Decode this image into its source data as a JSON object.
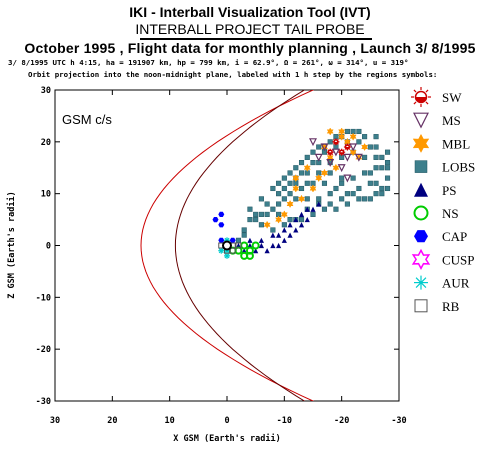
{
  "header": {
    "title": "IKI - Interball Visualization Tool (IVT)",
    "project": "INTERBALL PROJECT TAIL PROBE",
    "subtitle": "October  1995 ,  Flight data for monthly planning ,   Launch  3/ 8/1995",
    "orbit_params": "3/ 8/1995 UTC  h 4:15, ha = 191907 km, hp =    799 km, i = 62.9°, Ω = 261°, ω = 314°, u = 319°",
    "projection_note": "Orbit projection into the noon-midnight plane, labeled with 1 h step by the regions symbols:"
  },
  "chart_data": {
    "type": "scatter",
    "title": "",
    "frame_label": "GSM c/s",
    "xlabel": "X GSM (Earth's radii)",
    "ylabel": "Z GSM (Earth's radii)",
    "xlim": [
      30,
      -30
    ],
    "ylim": [
      -30,
      30
    ],
    "x_ticks": [
      30,
      20,
      10,
      0,
      -10,
      -20,
      -30
    ],
    "x_tick_labels": [
      "30",
      "20",
      "10",
      "0",
      "-10",
      "-20",
      "-30"
    ],
    "y_ticks": [
      30,
      20,
      10,
      0,
      -10,
      -20,
      -30
    ],
    "y_tick_labels": [
      "30",
      "20",
      "10",
      "0",
      "-10",
      "-20",
      "-30"
    ],
    "grid": false,
    "legend_position": "right",
    "boundaries": [
      {
        "name": "magnetopause",
        "color": "#cc0000",
        "nose_x": 15
      },
      {
        "name": "bow-shock",
        "color": "#660000",
        "nose_x": 9
      }
    ],
    "series": [
      {
        "name": "SW",
        "color": "#cc0000",
        "symbol": "sun",
        "points": [
          [
            -19,
            20
          ],
          [
            -20,
            18
          ],
          [
            -18,
            18
          ],
          [
            -21,
            19
          ]
        ]
      },
      {
        "name": "MS",
        "color": "#663366",
        "symbol": "triangle-down",
        "points": [
          [
            -15,
            20
          ],
          [
            -17,
            19
          ],
          [
            -19,
            18
          ],
          [
            -21,
            17
          ],
          [
            -18,
            16
          ],
          [
            -20,
            15
          ],
          [
            -16,
            17
          ],
          [
            -22,
            19
          ],
          [
            -23,
            17
          ],
          [
            -21,
            13
          ]
        ]
      },
      {
        "name": "MBL",
        "color": "#ff9900",
        "symbol": "star",
        "points": [
          [
            -18,
            22
          ],
          [
            -20,
            21
          ],
          [
            -17,
            19
          ],
          [
            -21,
            20
          ],
          [
            -22,
            18
          ],
          [
            -23,
            17
          ],
          [
            -12,
            13
          ],
          [
            -14,
            15
          ],
          [
            -17,
            14
          ],
          [
            -19,
            15
          ],
          [
            -13,
            9
          ],
          [
            -11,
            8
          ],
          [
            -10,
            6
          ],
          [
            -12,
            11
          ],
          [
            -16,
            13
          ],
          [
            -9,
            5
          ],
          [
            -7,
            4
          ],
          [
            -20,
            22
          ],
          [
            -22,
            21
          ],
          [
            -18,
            17
          ],
          [
            -24,
            19
          ],
          [
            -15,
            11
          ]
        ]
      },
      {
        "name": "LOBS",
        "color": "#3d7f8c",
        "symbol": "square",
        "points": [
          [
            -7,
            8
          ],
          [
            -9,
            10
          ],
          [
            -11,
            12
          ],
          [
            -13,
            14
          ],
          [
            -15,
            16
          ],
          [
            -17,
            18
          ],
          [
            -19,
            19
          ],
          [
            -21,
            20
          ],
          [
            -23,
            20
          ],
          [
            -25,
            19
          ],
          [
            -26,
            17
          ],
          [
            -27,
            15
          ],
          [
            -28,
            13
          ],
          [
            -27,
            11
          ],
          [
            -25,
            9
          ],
          [
            -23,
            9
          ],
          [
            -21,
            10
          ],
          [
            -19,
            11
          ],
          [
            -17,
            12
          ],
          [
            -15,
            12
          ],
          [
            -13,
            11
          ],
          [
            -11,
            10
          ],
          [
            -9,
            8
          ],
          [
            -7,
            6
          ],
          [
            -5,
            5
          ],
          [
            -3,
            3
          ],
          [
            -8,
            11
          ],
          [
            -10,
            13
          ],
          [
            -12,
            15
          ],
          [
            -14,
            17
          ],
          [
            -16,
            19
          ],
          [
            -18,
            20
          ],
          [
            -20,
            21
          ],
          [
            -22,
            22
          ],
          [
            -24,
            21
          ],
          [
            -26,
            19
          ],
          [
            -27,
            17
          ],
          [
            -28,
            15
          ],
          [
            -6,
            4
          ],
          [
            -8,
            3
          ],
          [
            -10,
            4
          ],
          [
            -12,
            5
          ],
          [
            -14,
            7
          ],
          [
            -16,
            9
          ],
          [
            -18,
            10
          ],
          [
            -20,
            12
          ],
          [
            -22,
            13
          ],
          [
            -24,
            14
          ],
          [
            -26,
            15
          ],
          [
            -28,
            16
          ],
          [
            -25,
            12
          ],
          [
            -23,
            11
          ],
          [
            -21,
            8
          ],
          [
            -19,
            7
          ],
          [
            -17,
            7
          ],
          [
            -15,
            6
          ],
          [
            -13,
            5
          ],
          [
            -11,
            5
          ],
          [
            -9,
            6
          ],
          [
            -6,
            9
          ],
          [
            -4,
            7
          ],
          [
            -5,
            6
          ],
          [
            -12,
            13
          ],
          [
            -14,
            14
          ],
          [
            -16,
            16
          ],
          [
            -18,
            16
          ],
          [
            -20,
            17
          ],
          [
            -22,
            18
          ],
          [
            -24,
            17
          ],
          [
            -25,
            14
          ],
          [
            -26,
            12
          ],
          [
            -27,
            10
          ],
          [
            -24,
            9
          ],
          [
            -22,
            10
          ],
          [
            -20,
            9
          ],
          [
            -18,
            8
          ],
          [
            -16,
            8
          ],
          [
            -14,
            9
          ],
          [
            -12,
            9
          ],
          [
            -10,
            9
          ],
          [
            -8,
            7
          ],
          [
            -6,
            6
          ],
          [
            -4,
            5
          ],
          [
            -3,
            2
          ],
          [
            -2,
            1
          ],
          [
            -9,
            12
          ],
          [
            -11,
            14
          ],
          [
            -13,
            16
          ],
          [
            -15,
            18
          ],
          [
            -17,
            19
          ],
          [
            -19,
            21
          ],
          [
            -21,
            22
          ],
          [
            -23,
            22
          ],
          [
            -26,
            21
          ],
          [
            -28,
            18
          ],
          [
            -28,
            11
          ],
          [
            -26,
            10
          ],
          [
            -20,
            13
          ],
          [
            -18,
            14
          ],
          [
            -16,
            14
          ],
          [
            -14,
            12
          ],
          [
            -12,
            12
          ],
          [
            -10,
            11
          ]
        ]
      },
      {
        "name": "PS",
        "color": "#000080",
        "symbol": "triangle-up",
        "points": [
          [
            -2,
            0
          ],
          [
            -4,
            0
          ],
          [
            -6,
            1
          ],
          [
            -8,
            2
          ],
          [
            -10,
            3
          ],
          [
            -11,
            4
          ],
          [
            -12,
            5
          ],
          [
            -13,
            6
          ],
          [
            -14,
            7
          ],
          [
            -5,
            -1
          ],
          [
            -7,
            -1
          ],
          [
            -9,
            0
          ],
          [
            -11,
            2
          ],
          [
            -13,
            4
          ],
          [
            -3,
            -1
          ],
          [
            -8,
            0
          ],
          [
            -10,
            1
          ],
          [
            -12,
            3
          ],
          [
            -14,
            5
          ],
          [
            -6,
            0
          ],
          [
            -4,
            1
          ],
          [
            -9,
            2
          ],
          [
            -15,
            7
          ],
          [
            -16,
            8
          ]
        ]
      },
      {
        "name": "NS",
        "color": "#00cc00",
        "symbol": "circle",
        "points": [
          [
            -1,
            -1
          ],
          [
            -2,
            -1
          ],
          [
            -3,
            0
          ],
          [
            -4,
            -1
          ],
          [
            -5,
            0
          ],
          [
            -3,
            -2
          ],
          [
            -4,
            -2
          ]
        ]
      },
      {
        "name": "CAP",
        "color": "#0000ff",
        "symbol": "hexagon",
        "points": [
          [
            2,
            5
          ],
          [
            1,
            6
          ],
          [
            1,
            4
          ],
          [
            1,
            1
          ],
          [
            -1,
            1
          ]
        ]
      },
      {
        "name": "CUSP",
        "color": "#ff00ff",
        "symbol": "star-outline",
        "points": []
      },
      {
        "name": "AUR",
        "color": "#00cccc",
        "symbol": "asterisk",
        "points": [
          [
            0,
            -1
          ],
          [
            1,
            -1
          ],
          [
            0,
            -2
          ],
          [
            0,
            1
          ]
        ]
      },
      {
        "name": "RB",
        "color": "#555555",
        "symbol": "square-outline",
        "points": [
          [
            0,
            0
          ],
          [
            0,
            -1
          ],
          [
            -1,
            0
          ],
          [
            -1,
            -1
          ],
          [
            1,
            0
          ],
          [
            -2,
            0
          ]
        ]
      }
    ],
    "earth": {
      "x": 0,
      "z": 0
    }
  }
}
